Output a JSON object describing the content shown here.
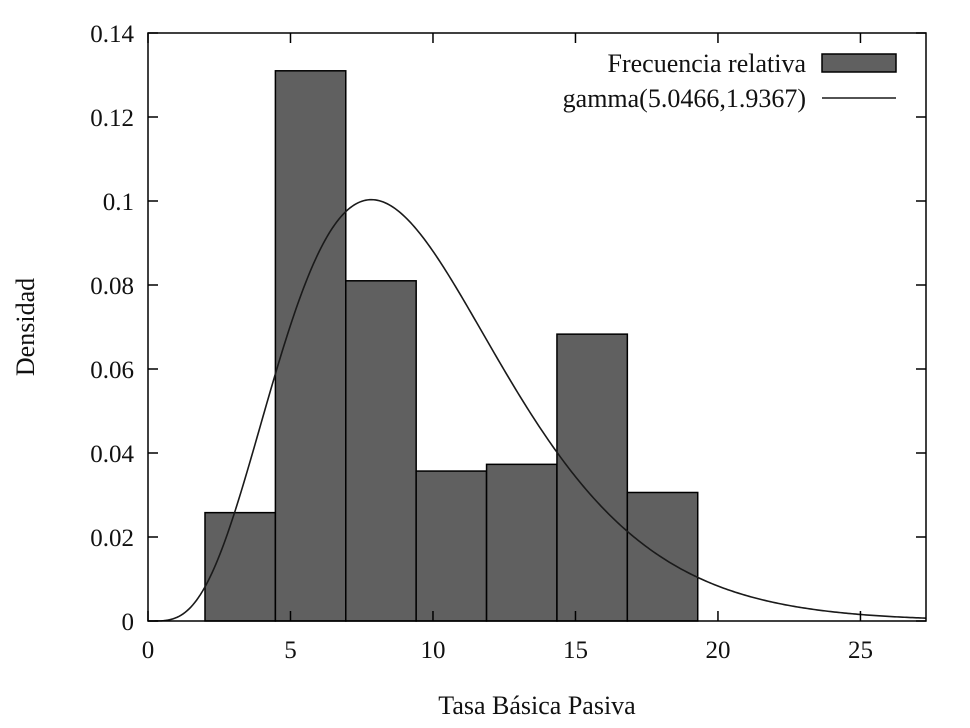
{
  "chart_data": {
    "type": "bar",
    "title": "",
    "xlabel": "Tasa Básica Pasiva",
    "ylabel": "Densidad",
    "xlim": [
      0,
      27.3
    ],
    "ylim": [
      0,
      0.14
    ],
    "x_ticks": [
      0,
      5,
      10,
      15,
      20,
      25
    ],
    "y_ticks": [
      0,
      0.02,
      0.04,
      0.06,
      0.08,
      0.1,
      0.12,
      0.14
    ],
    "x_tick_labels": [
      "0",
      "5",
      "10",
      "15",
      "20",
      "25"
    ],
    "y_tick_labels": [
      "0",
      "0.02",
      "0.04",
      "0.06",
      "0.08",
      "0.1",
      "0.12",
      "0.14"
    ],
    "grid": false,
    "legend_position": "top-right",
    "bar_color": "#606060",
    "line_color": "#1a1a1a",
    "series": [
      {
        "name": "Frecuencia relativa",
        "kind": "histogram",
        "bins": [
          {
            "x0": 2.0,
            "x1": 4.47,
            "value": 0.0258
          },
          {
            "x0": 4.47,
            "x1": 6.94,
            "value": 0.131
          },
          {
            "x0": 6.94,
            "x1": 9.41,
            "value": 0.081
          },
          {
            "x0": 9.41,
            "x1": 11.88,
            "value": 0.0357
          },
          {
            "x0": 11.88,
            "x1": 14.35,
            "value": 0.0373
          },
          {
            "x0": 14.35,
            "x1": 16.82,
            "value": 0.0683
          },
          {
            "x0": 16.82,
            "x1": 19.29,
            "value": 0.0306
          }
        ]
      },
      {
        "name": "gamma(5.0466,1.9367)",
        "kind": "line",
        "distribution": {
          "family": "gamma",
          "shape": 5.0466,
          "scale": 1.9367
        }
      }
    ]
  }
}
